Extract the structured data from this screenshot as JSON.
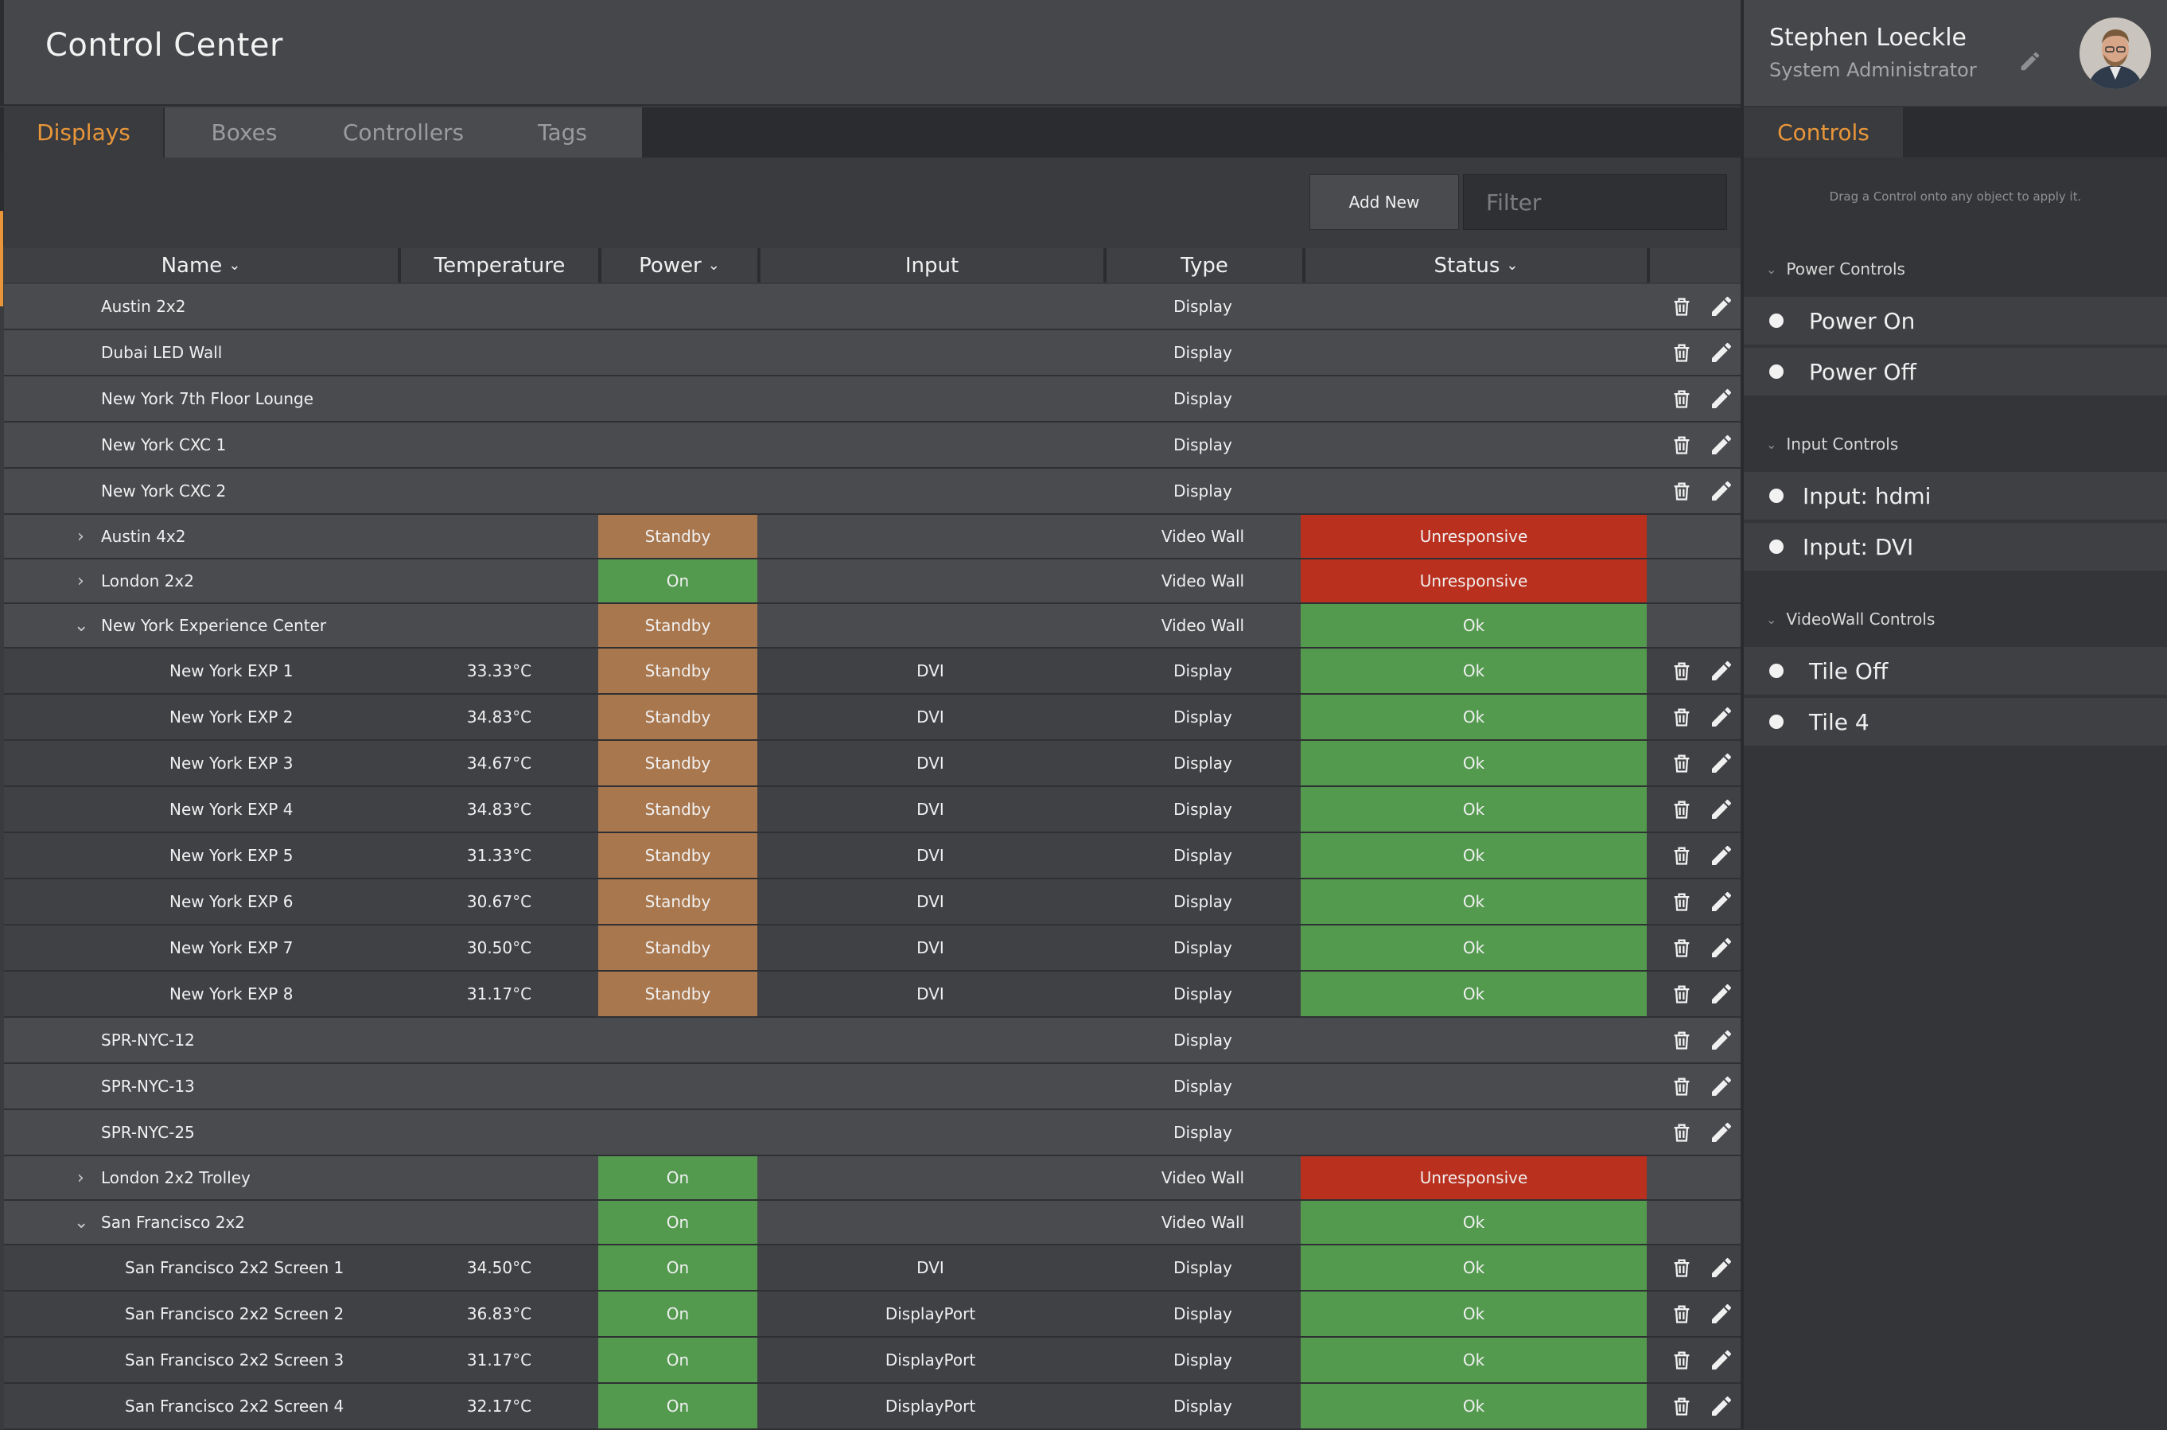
{
  "app": {
    "title": "Control Center"
  },
  "tabs": [
    "Displays",
    "Boxes",
    "Controllers",
    "Tags"
  ],
  "toolbar": {
    "add_label": "Add New",
    "filter_placeholder": "Filter"
  },
  "columns": [
    "Name",
    "Temperature",
    "Power",
    "Input",
    "Type",
    "Status"
  ],
  "sorted_columns": [
    "Name",
    "Power",
    "Status"
  ],
  "rows": [
    {
      "name": "Austin 2x2",
      "indent": 0,
      "expander": "",
      "temperature": "",
      "power": "",
      "input": "",
      "type": "Display",
      "status": "",
      "actions": true
    },
    {
      "name": "Dubai LED Wall",
      "indent": 0,
      "expander": "",
      "temperature": "",
      "power": "",
      "input": "",
      "type": "Display",
      "status": "",
      "actions": true
    },
    {
      "name": "New York 7th Floor Lounge",
      "indent": 0,
      "expander": "",
      "temperature": "",
      "power": "",
      "input": "",
      "type": "Display",
      "status": "",
      "actions": true
    },
    {
      "name": "New York CXC 1",
      "indent": 0,
      "expander": "",
      "temperature": "",
      "power": "",
      "input": "",
      "type": "Display",
      "status": "",
      "actions": true
    },
    {
      "name": "New York CXC 2",
      "indent": 0,
      "expander": "",
      "temperature": "",
      "power": "",
      "input": "",
      "type": "Display",
      "status": "",
      "actions": true
    },
    {
      "name": "Austin 4x2",
      "indent": 0,
      "expander": "collapsed",
      "temperature": "",
      "power": "Standby",
      "input": "",
      "type": "Video Wall",
      "status": "Unresponsive",
      "actions": false
    },
    {
      "name": "London 2x2",
      "indent": 0,
      "expander": "collapsed",
      "temperature": "",
      "power": "On",
      "input": "",
      "type": "Video Wall",
      "status": "Unresponsive",
      "actions": false
    },
    {
      "name": "New York Experience Center",
      "indent": 0,
      "expander": "expanded",
      "temperature": "",
      "power": "Standby",
      "input": "",
      "type": "Video Wall",
      "status": "Ok",
      "actions": false
    },
    {
      "name": "New York EXP 1",
      "indent": 2,
      "expander": "",
      "temperature": "33.33°C",
      "power": "Standby",
      "input": "DVI",
      "type": "Display",
      "status": "Ok",
      "actions": true
    },
    {
      "name": "New York EXP 2",
      "indent": 2,
      "expander": "",
      "temperature": "34.83°C",
      "power": "Standby",
      "input": "DVI",
      "type": "Display",
      "status": "Ok",
      "actions": true
    },
    {
      "name": "New York EXP 3",
      "indent": 2,
      "expander": "",
      "temperature": "34.67°C",
      "power": "Standby",
      "input": "DVI",
      "type": "Display",
      "status": "Ok",
      "actions": true
    },
    {
      "name": "New York EXP 4",
      "indent": 2,
      "expander": "",
      "temperature": "34.83°C",
      "power": "Standby",
      "input": "DVI",
      "type": "Display",
      "status": "Ok",
      "actions": true
    },
    {
      "name": "New York EXP 5",
      "indent": 2,
      "expander": "",
      "temperature": "31.33°C",
      "power": "Standby",
      "input": "DVI",
      "type": "Display",
      "status": "Ok",
      "actions": true
    },
    {
      "name": "New York EXP 6",
      "indent": 2,
      "expander": "",
      "temperature": "30.67°C",
      "power": "Standby",
      "input": "DVI",
      "type": "Display",
      "status": "Ok",
      "actions": true
    },
    {
      "name": "New York EXP 7",
      "indent": 2,
      "expander": "",
      "temperature": "30.50°C",
      "power": "Standby",
      "input": "DVI",
      "type": "Display",
      "status": "Ok",
      "actions": true
    },
    {
      "name": "New York EXP 8",
      "indent": 2,
      "expander": "",
      "temperature": "31.17°C",
      "power": "Standby",
      "input": "DVI",
      "type": "Display",
      "status": "Ok",
      "actions": true
    },
    {
      "name": "SPR-NYC-12",
      "indent": 0,
      "expander": "",
      "temperature": "",
      "power": "",
      "input": "",
      "type": "Display",
      "status": "",
      "actions": true
    },
    {
      "name": "SPR-NYC-13",
      "indent": 0,
      "expander": "",
      "temperature": "",
      "power": "",
      "input": "",
      "type": "Display",
      "status": "",
      "actions": true
    },
    {
      "name": "SPR-NYC-25",
      "indent": 0,
      "expander": "",
      "temperature": "",
      "power": "",
      "input": "",
      "type": "Display",
      "status": "",
      "actions": true
    },
    {
      "name": "London 2x2 Trolley",
      "indent": 0,
      "expander": "collapsed",
      "temperature": "",
      "power": "On",
      "input": "",
      "type": "Video Wall",
      "status": "Unresponsive",
      "actions": false
    },
    {
      "name": "San Francisco 2x2",
      "indent": 0,
      "expander": "expanded",
      "temperature": "",
      "power": "On",
      "input": "",
      "type": "Video Wall",
      "status": "Ok",
      "actions": false
    },
    {
      "name": "San Francisco 2x2 Screen 1",
      "indent": 1,
      "expander": "",
      "temperature": "34.50°C",
      "power": "On",
      "input": "DVI",
      "type": "Display",
      "status": "Ok",
      "actions": true
    },
    {
      "name": "San Francisco 2x2 Screen 2",
      "indent": 1,
      "expander": "",
      "temperature": "36.83°C",
      "power": "On",
      "input": "DisplayPort",
      "type": "Display",
      "status": "Ok",
      "actions": true
    },
    {
      "name": "San Francisco 2x2 Screen 3",
      "indent": 1,
      "expander": "",
      "temperature": "31.17°C",
      "power": "On",
      "input": "DisplayPort",
      "type": "Display",
      "status": "Ok",
      "actions": true
    },
    {
      "name": "San Francisco 2x2 Screen 4",
      "indent": 1,
      "expander": "",
      "temperature": "32.17°C",
      "power": "On",
      "input": "DisplayPort",
      "type": "Display",
      "status": "Ok",
      "actions": true
    }
  ],
  "user": {
    "name": "Stephen Loeckle",
    "role": "System Administrator"
  },
  "side_panel": {
    "tab": "Controls",
    "hint": "Drag a Control onto any object to apply it.",
    "groups": [
      {
        "title": "Power Controls",
        "items": [
          "Power On",
          "Power Off"
        ]
      },
      {
        "title": "Input Controls",
        "items": [
          "Input: hdmi",
          "Input: DVI"
        ]
      },
      {
        "title": "VideoWall Controls",
        "items": [
          "Tile Off",
          "Tile 4"
        ]
      }
    ]
  },
  "icons": {
    "row_delete": "trash-icon",
    "row_edit": "pencil-icon",
    "profile_edit": "pencil-icon",
    "sort": "chevron-down-icon"
  },
  "colors": {
    "accent": "#e9963a",
    "standby": "#a9774e",
    "on": "#539a4f",
    "ok": "#539a4f",
    "unresponsive": "#b9301e"
  }
}
